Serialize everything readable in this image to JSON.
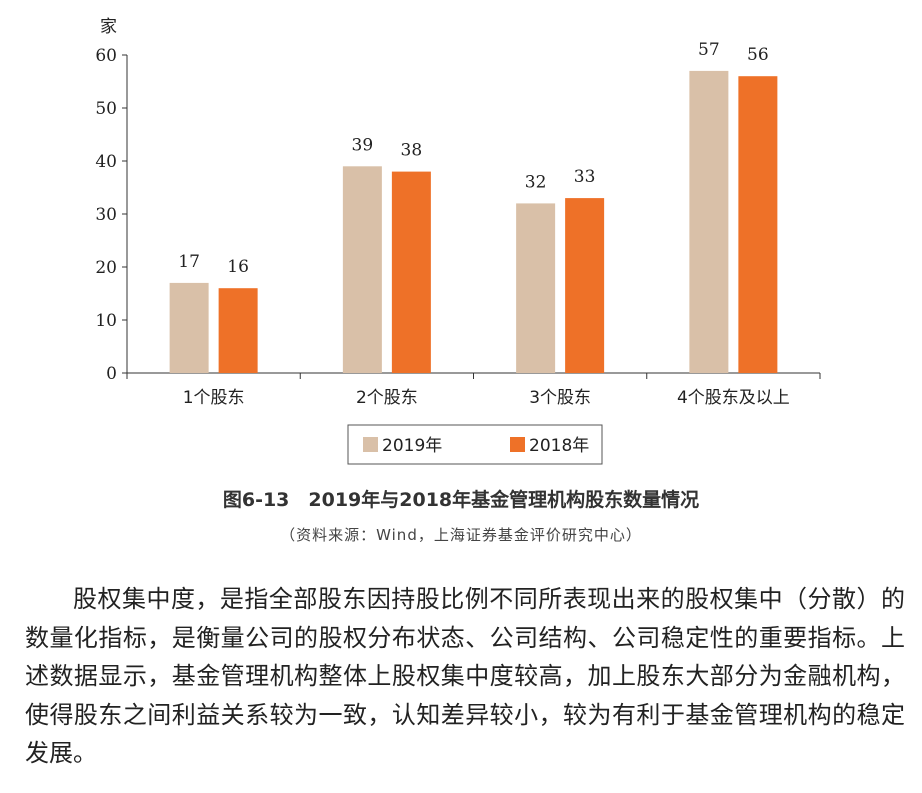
{
  "chart_data": {
    "type": "bar",
    "ylabel": "家",
    "ylim": [
      0,
      60
    ],
    "yticks": [
      "0",
      "10",
      "20",
      "30",
      "40",
      "50",
      "60"
    ],
    "categories": [
      "1个股东",
      "2个股东",
      "3个股东",
      "4个股东及以上"
    ],
    "series": [
      {
        "name": "2019年",
        "color": "#D9C0A8",
        "values": [
          17,
          39,
          32,
          57
        ]
      },
      {
        "name": "2018年",
        "color": "#EE7128",
        "values": [
          16,
          38,
          33,
          56
        ]
      }
    ],
    "legend_position": "bottom-center",
    "grid": false
  },
  "caption": {
    "title": "图6-13　2019年与2018年基金管理机构股东数量情况",
    "source": "（资料来源：Wind，上海证券基金评价研究中心）"
  },
  "paragraph": "股权集中度，是指全部股东因持股比例不同所表现出来的股权集中（分散）的数量化指标，是衡量公司的股权分布状态、公司结构、公司稳定性的重要指标。上述数据显示，基金管理机构整体上股权集中度较高，加上股东大部分为金融机构，使得股东之间利益关系较为一致，认知差异较小，较为有利于基金管理机构的稳定发展。"
}
